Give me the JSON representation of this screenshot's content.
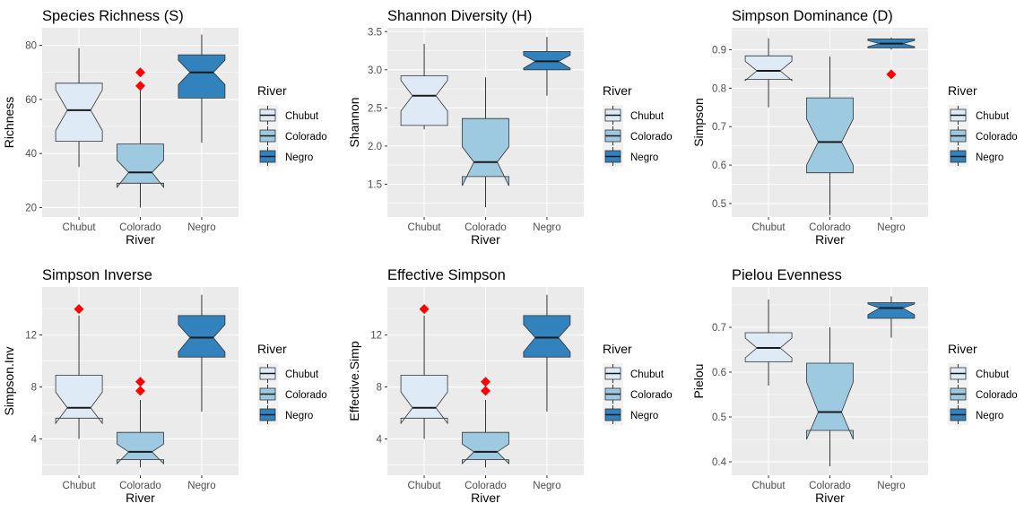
{
  "legend": {
    "title": "River",
    "items": [
      "Chubut",
      "Colorado",
      "Negro"
    ]
  },
  "colors": {
    "Chubut": "#deebf7",
    "Colorado": "#9ecae1",
    "Negro": "#3182bd",
    "outlier": "#ff0000",
    "panel_bg": "#ebebeb",
    "grid": "#ffffff",
    "axis_text": "#4d4d4d"
  },
  "chart_data": [
    {
      "type": "boxplot",
      "title": "Species Richness (S)",
      "xlabel": "River",
      "ylabel": "Richness",
      "categories": [
        "Chubut",
        "Colorado",
        "Negro"
      ],
      "ylim": [
        16.5,
        86.5
      ],
      "yticks": [
        20,
        40,
        60,
        80
      ],
      "yticklabels": [
        "20",
        "40",
        "60",
        "80"
      ],
      "boxes": [
        {
          "min": 35,
          "q1": 44.5,
          "median": 56,
          "q3": 66,
          "max": 79,
          "notch_lo": 48.5,
          "notch_hi": 63.5,
          "outliers": []
        },
        {
          "min": 20,
          "q1": 29,
          "median": 33,
          "q3": 43.5,
          "max": 63.5,
          "notch_lo": 27.5,
          "notch_hi": 37.5,
          "outliers": [
            65,
            70
          ]
        },
        {
          "min": 44,
          "q1": 60.5,
          "median": 70,
          "q3": 76.5,
          "max": 84,
          "notch_lo": 65.5,
          "notch_hi": 74.5,
          "outliers": []
        }
      ]
    },
    {
      "type": "boxplot",
      "title": "Shannon Diversity (H)",
      "xlabel": "River",
      "ylabel": "Shannon",
      "categories": [
        "Chubut",
        "Colorado",
        "Negro"
      ],
      "ylim": [
        1.07,
        3.55
      ],
      "yticks": [
        1.5,
        2.0,
        2.5,
        3.0,
        3.5
      ],
      "yticklabels": [
        "1.5",
        "2.0",
        "2.5",
        "3.0",
        "3.5"
      ],
      "boxes": [
        {
          "min": 2.22,
          "q1": 2.27,
          "median": 2.66,
          "q3": 2.92,
          "max": 3.34,
          "notch_lo": 2.46,
          "notch_hi": 2.86,
          "outliers": []
        },
        {
          "min": 1.2,
          "q1": 1.6,
          "median": 1.79,
          "q3": 2.36,
          "max": 2.9,
          "notch_lo": 1.48,
          "notch_hi": 1.99,
          "outliers": []
        },
        {
          "min": 2.66,
          "q1": 3.0,
          "median": 3.11,
          "q3": 3.24,
          "max": 3.43,
          "notch_lo": 3.02,
          "notch_hi": 3.19,
          "outliers": []
        }
      ]
    },
    {
      "type": "boxplot",
      "title": "Simpson Dominance (D)",
      "xlabel": "River",
      "ylabel": "Simpson",
      "categories": [
        "Chubut",
        "Colorado",
        "Negro"
      ],
      "ylim": [
        0.465,
        0.957
      ],
      "yticks": [
        0.5,
        0.6,
        0.7,
        0.8,
        0.9
      ],
      "yticklabels": [
        "0.5",
        "0.6",
        "0.7",
        "0.8",
        "0.9"
      ],
      "boxes": [
        {
          "min": 0.75,
          "q1": 0.823,
          "median": 0.845,
          "q3": 0.884,
          "max": 0.93,
          "notch_lo": 0.82,
          "notch_hi": 0.87,
          "outliers": []
        },
        {
          "min": 0.47,
          "q1": 0.58,
          "median": 0.66,
          "q3": 0.775,
          "max": 0.882,
          "notch_lo": 0.6,
          "notch_hi": 0.72,
          "outliers": []
        },
        {
          "min": 0.9,
          "q1": 0.905,
          "median": 0.916,
          "q3": 0.928,
          "max": 0.932,
          "notch_lo": 0.908,
          "notch_hi": 0.924,
          "outliers": [
            0.836
          ]
        }
      ]
    },
    {
      "type": "boxplot",
      "title": "Simpson Inverse",
      "xlabel": "River",
      "ylabel": "Simpson.Inv",
      "categories": [
        "Chubut",
        "Colorado",
        "Negro"
      ],
      "ylim": [
        1.2,
        15.7
      ],
      "yticks": [
        4,
        8,
        12
      ],
      "yticklabels": [
        "4",
        "8",
        "12"
      ],
      "boxes": [
        {
          "min": 4.0,
          "q1": 5.6,
          "median": 6.4,
          "q3": 8.9,
          "max": 13.5,
          "notch_lo": 5.2,
          "notch_hi": 7.6,
          "outliers": [
            14.0
          ]
        },
        {
          "min": 1.8,
          "q1": 2.4,
          "median": 3.0,
          "q3": 4.5,
          "max": 7.0,
          "notch_lo": 2.1,
          "notch_hi": 3.6,
          "outliers": [
            7.7,
            8.4
          ]
        },
        {
          "min": 6.1,
          "q1": 10.3,
          "median": 11.8,
          "q3": 13.5,
          "max": 15.1,
          "notch_lo": 10.7,
          "notch_hi": 12.8,
          "outliers": []
        }
      ]
    },
    {
      "type": "boxplot",
      "title": "Effective Simpson",
      "xlabel": "River",
      "ylabel": "Effective.Simp",
      "categories": [
        "Chubut",
        "Colorado",
        "Negro"
      ],
      "ylim": [
        1.2,
        15.7
      ],
      "yticks": [
        4,
        8,
        12
      ],
      "yticklabels": [
        "4",
        "8",
        "12"
      ],
      "boxes": [
        {
          "min": 4.0,
          "q1": 5.6,
          "median": 6.4,
          "q3": 8.9,
          "max": 13.5,
          "notch_lo": 5.2,
          "notch_hi": 7.6,
          "outliers": [
            14.0
          ]
        },
        {
          "min": 1.8,
          "q1": 2.4,
          "median": 3.0,
          "q3": 4.5,
          "max": 7.0,
          "notch_lo": 2.1,
          "notch_hi": 3.6,
          "outliers": [
            7.7,
            8.4
          ]
        },
        {
          "min": 6.1,
          "q1": 10.3,
          "median": 11.8,
          "q3": 13.5,
          "max": 15.1,
          "notch_lo": 10.7,
          "notch_hi": 12.8,
          "outliers": []
        }
      ]
    },
    {
      "type": "boxplot",
      "title": "Pielou Evenness",
      "xlabel": "River",
      "ylabel": "Pielou",
      "categories": [
        "Chubut",
        "Colorado",
        "Negro"
      ],
      "ylim": [
        0.37,
        0.79
      ],
      "yticks": [
        0.4,
        0.5,
        0.6,
        0.7
      ],
      "yticklabels": [
        "0.4",
        "0.5",
        "0.6",
        "0.7"
      ],
      "boxes": [
        {
          "min": 0.57,
          "q1": 0.623,
          "median": 0.654,
          "q3": 0.688,
          "max": 0.762,
          "notch_lo": 0.632,
          "notch_hi": 0.676,
          "outliers": []
        },
        {
          "min": 0.39,
          "q1": 0.47,
          "median": 0.511,
          "q3": 0.62,
          "max": 0.7,
          "notch_lo": 0.45,
          "notch_hi": 0.578,
          "outliers": []
        },
        {
          "min": 0.677,
          "q1": 0.72,
          "median": 0.743,
          "q3": 0.755,
          "max": 0.769,
          "notch_lo": 0.728,
          "notch_hi": 0.752,
          "outliers": []
        }
      ]
    }
  ]
}
